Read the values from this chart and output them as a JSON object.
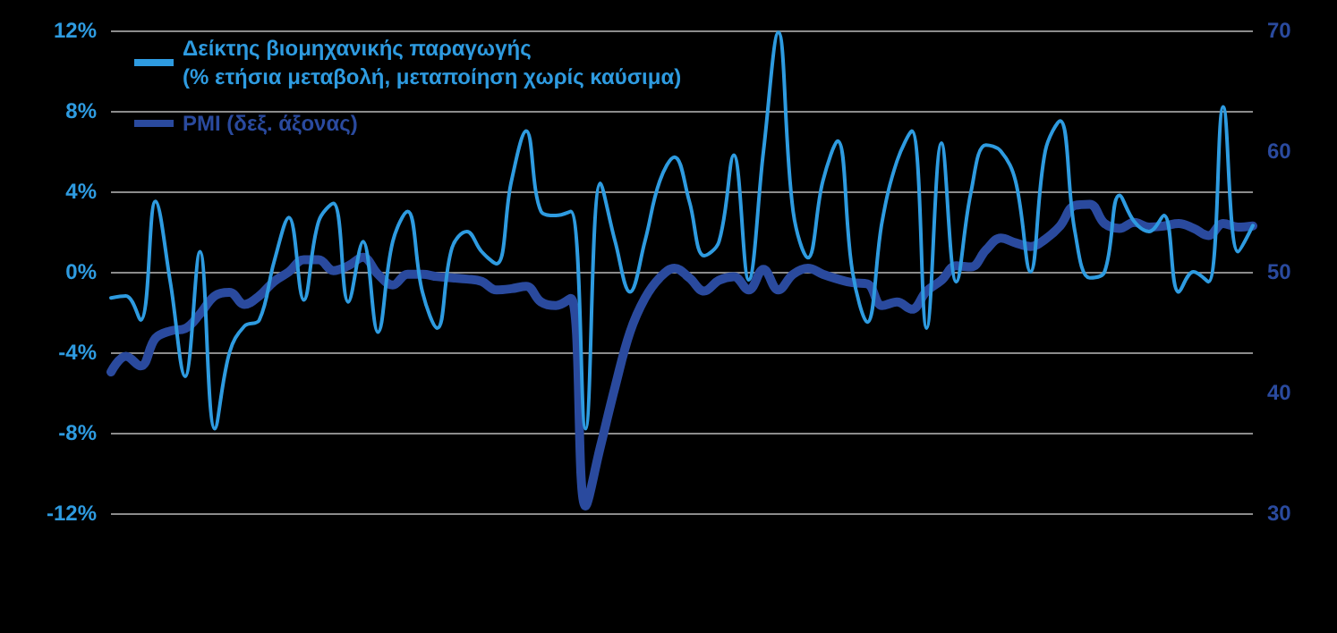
{
  "chart_data": {
    "type": "line",
    "categories": [
      null,
      null,
      null,
      null,
      null,
      null,
      null,
      null,
      null,
      null,
      null,
      null,
      null,
      null,
      null,
      null,
      null,
      null,
      null,
      null,
      null,
      null,
      null,
      null,
      null,
      null,
      null,
      null,
      null,
      null,
      null,
      null,
      null,
      null,
      null,
      null,
      null,
      null,
      null,
      null,
      null,
      null,
      null,
      null,
      null,
      null,
      null,
      null,
      null,
      null,
      null,
      null,
      null,
      null,
      null,
      null,
      null,
      null,
      null,
      null,
      null,
      null,
      null,
      null,
      null,
      null,
      null,
      null,
      null,
      null,
      null,
      null,
      null,
      null,
      null,
      null,
      null,
      null
    ],
    "series": [
      {
        "name": "Δείκτης βιομηχανικής παραγωγής\n(% ετήσια μεταβολή, μεταποίηση χωρίς καύσιμα)",
        "color": "#2e9be0",
        "values": [
          -1.3,
          -1.2,
          -2.4,
          3.5,
          -0.5,
          -5.2,
          1.0,
          -7.8,
          -4.0,
          -2.7,
          -2.4,
          0.5,
          2.7,
          -1.4,
          2.5,
          3.4,
          -1.5,
          1.5,
          -3.0,
          1.5,
          3.0,
          -1.0,
          -2.8,
          1.2,
          2.0,
          1.0,
          0.4,
          4.5,
          7.0,
          3.0,
          2.8,
          3.0,
          -7.8,
          4.4,
          1.5,
          -1.0,
          1.5,
          4.5,
          5.7,
          3.5,
          0.8,
          1.5,
          5.8,
          -0.4,
          6.0,
          11.9,
          3.0,
          0.7,
          4.5,
          6.5,
          0.0,
          -2.5,
          2.5,
          5.5,
          7.0,
          -2.8,
          6.4,
          -0.5,
          4.0,
          6.3,
          6.0,
          4.5,
          0.0,
          6.0,
          7.5,
          2.0,
          -0.3,
          0.0,
          3.8,
          2.5,
          2.0,
          2.8,
          -1.0,
          0.0,
          -0.5,
          8.2,
          1.0,
          2.3
        ]
      },
      {
        "name": "PMI (δεξ. άξονας)",
        "color": "#2a4a9e",
        "axis": "y2",
        "values": [
          41.7,
          43,
          42.2,
          44.5,
          45.1,
          45.3,
          46.5,
          48,
          48.3,
          47.3,
          48,
          49.2,
          50,
          51,
          51,
          50.1,
          50.5,
          51.2,
          49.8,
          48.9,
          49.8,
          49.8,
          49.6,
          49.5,
          49.4,
          49.2,
          48.5,
          48.6,
          48.8,
          47.5,
          47.2,
          47.8,
          30.6,
          35.5,
          40.5,
          45,
          47.8,
          49.5,
          50.3,
          49.5,
          48.4,
          49.3,
          49.6,
          48.5,
          50.2,
          48.5,
          49.8,
          50.3,
          49.8,
          49.4,
          49.1,
          49,
          47.2,
          47.5,
          46.9,
          48.4,
          49.3,
          50.5,
          50.4,
          51.8,
          52.8,
          52.4,
          52.1,
          52.7,
          53.8,
          55.5,
          55.6,
          54,
          53.6,
          54.1,
          53.7,
          53.8,
          54,
          53.6,
          53,
          54,
          53.7,
          53.8
        ]
      }
    ],
    "ylim": [
      -12,
      12
    ],
    "yticks": [
      {
        "value": -12,
        "label": "-12%"
      },
      {
        "value": -8,
        "label": "-8%"
      },
      {
        "value": -4,
        "label": "-4%"
      },
      {
        "value": 0,
        "label": "0%"
      },
      {
        "value": 4,
        "label": "4%"
      },
      {
        "value": 8,
        "label": "8%"
      },
      {
        "value": 12,
        "label": "12%"
      }
    ],
    "y2lim": [
      30,
      70
    ],
    "y2ticks": [
      30,
      40,
      50,
      60,
      70
    ],
    "grid": "y",
    "legend": "top left",
    "tick_labels": "y",
    "line_style": "solid"
  }
}
